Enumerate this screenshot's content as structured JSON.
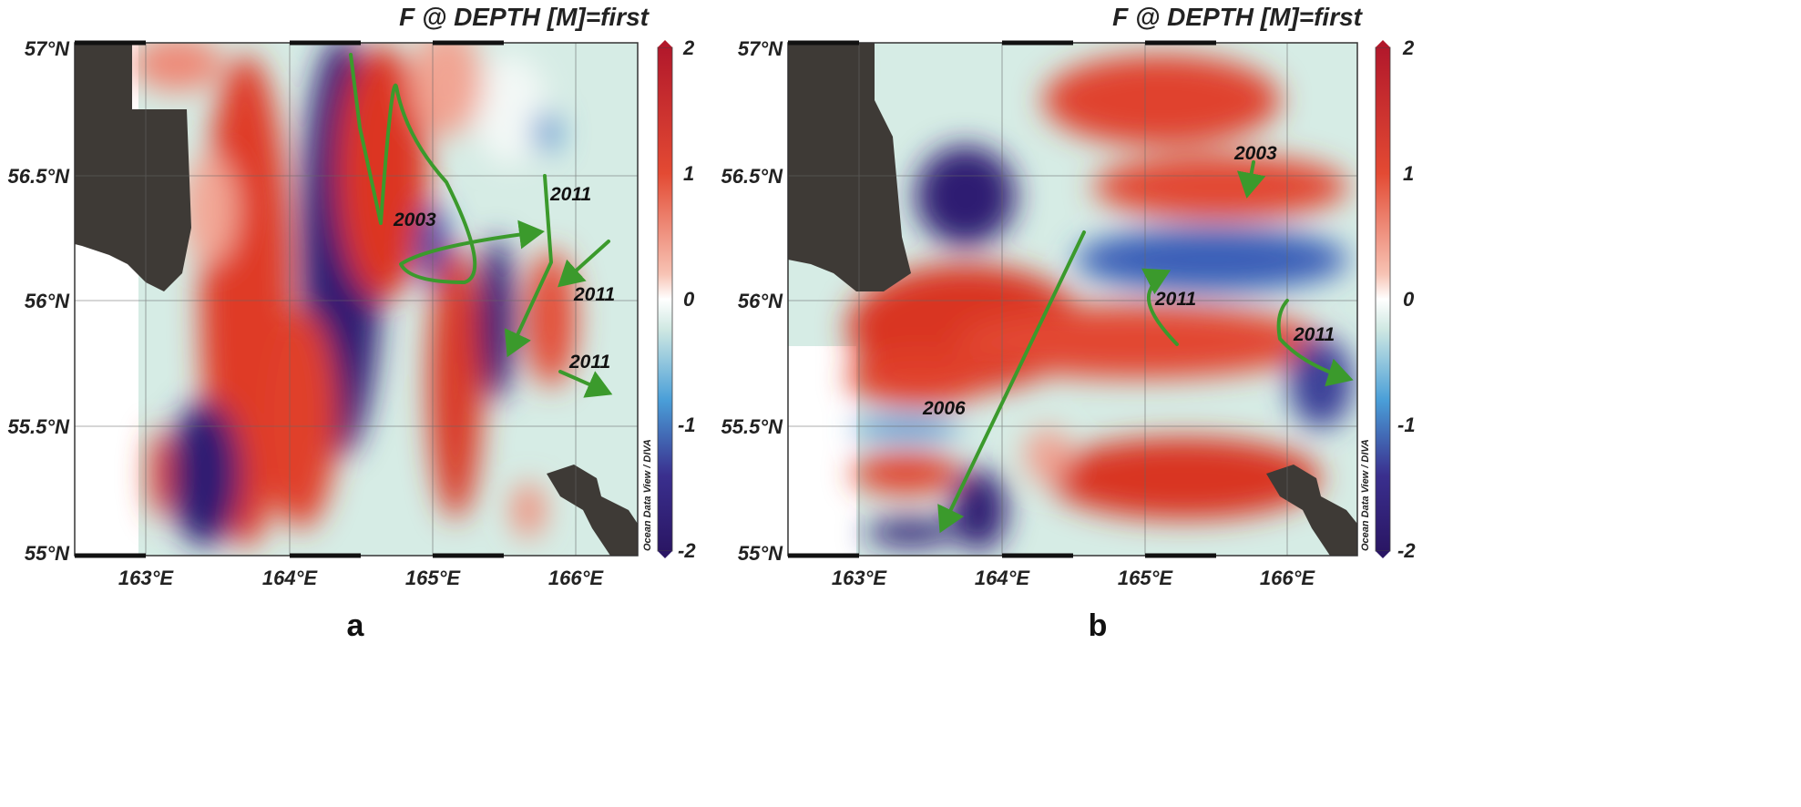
{
  "panels": [
    {
      "label": "a",
      "title": "F @ DEPTH [M]=first",
      "lat_ticks": [
        "57°N",
        "56.5°N",
        "56°N",
        "55.5°N",
        "55°N"
      ],
      "lon_ticks": [
        "163°E",
        "164°E",
        "165°E",
        "166°E"
      ],
      "colorbar": {
        "ticks": [
          "2",
          "1",
          "0",
          "-1",
          "-2"
        ],
        "range": [
          -2,
          2
        ]
      },
      "credit": "Ocean Data View / DIVA",
      "tracks": [
        {
          "year": "2003"
        },
        {
          "year": "2011"
        },
        {
          "year": "2011"
        },
        {
          "year": "2011"
        }
      ]
    },
    {
      "label": "b",
      "title": "F @ DEPTH [M]=first",
      "lat_ticks": [
        "57°N",
        "56.5°N",
        "56°N",
        "55.5°N",
        "55°N"
      ],
      "lon_ticks": [
        "163°E",
        "164°E",
        "165°E",
        "166°E"
      ],
      "colorbar": {
        "ticks": [
          "2",
          "1",
          "0",
          "-1",
          "-2"
        ],
        "range": [
          -2,
          2
        ]
      },
      "credit": "Ocean Data View / DIVA",
      "tracks": [
        {
          "year": "2003"
        },
        {
          "year": "2006"
        },
        {
          "year": "2011"
        },
        {
          "year": "2011"
        }
      ]
    }
  ],
  "colors": {
    "positive": "#d7301f",
    "negative": "#2c1a6e",
    "zero": "#ffffff",
    "land": "#3e3a36",
    "track": "#3b9a2c"
  }
}
